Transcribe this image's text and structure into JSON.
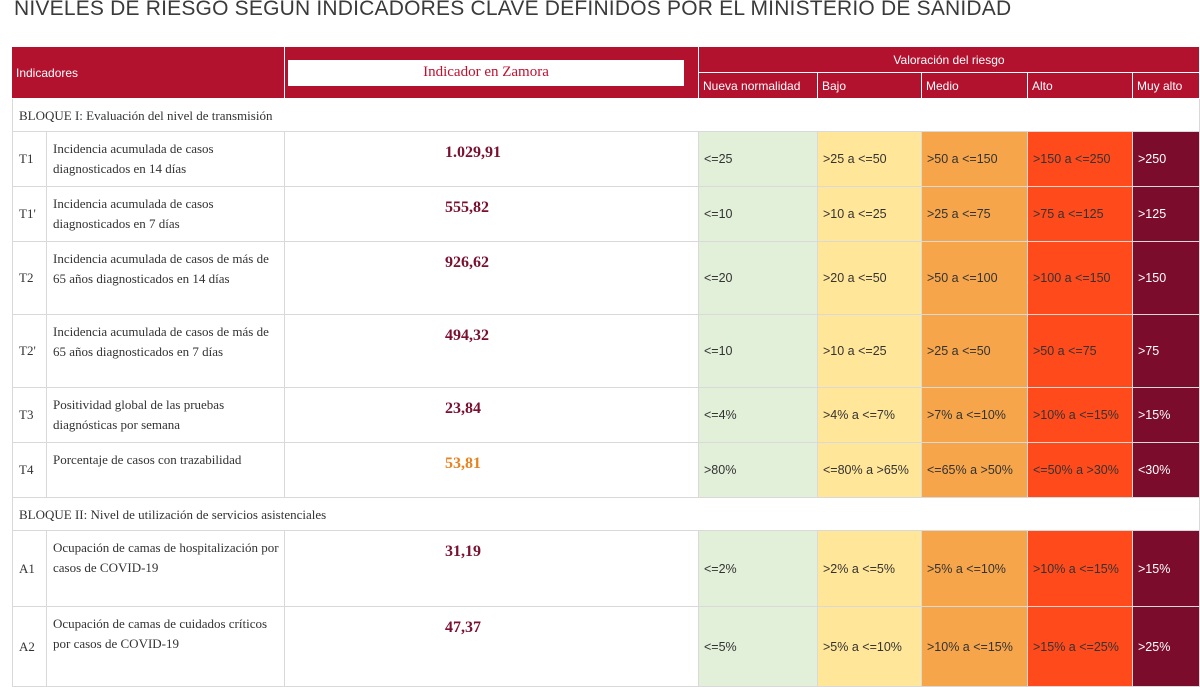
{
  "title": "NIVELES DE RIESGO SEGÚN INDICADORES CLAVE DEFINIDOS POR EL MINISTERIO DE SANIDAD",
  "header": {
    "indicadores": "Indicadores",
    "indicador_zamora": "Indicador en Zamora",
    "valoracion": "Valoración del riesgo",
    "levels": [
      {
        "name": "Nueva normalidad",
        "color": "#e2efd9"
      },
      {
        "name": "Bajo",
        "color": "#ffe699"
      },
      {
        "name": "Medio",
        "color": "#f6a54a"
      },
      {
        "name": "Alto",
        "color": "#ff4a1c"
      },
      {
        "name": "Muy alto",
        "color": "#7b0c2c"
      }
    ]
  },
  "blocks": [
    {
      "title": "BLOQUE I: Evaluación del nivel de transmisión",
      "rows": [
        {
          "code": "T1",
          "description": "Incidencia acumulada de casos diagnosticados en 14 días",
          "value": "1.029,91",
          "value_color": "#7a1030",
          "thresholds": [
            "<=25",
            ">25 a <=50",
            ">50 a <=150",
            ">150 a <=250",
            ">250"
          ]
        },
        {
          "code": "T1'",
          "description": "Incidencia acumulada de casos diagnosticados en 7 días",
          "value": "555,82",
          "value_color": "#7a1030",
          "thresholds": [
            "<=10",
            ">10 a <=25",
            ">25 a <=75",
            ">75 a <=125",
            ">125"
          ]
        },
        {
          "code": "T2",
          "description": "Incidencia acumulada de casos de más de 65 años diagnosticados en 14 días",
          "value": "926,62",
          "value_color": "#7a1030",
          "thresholds": [
            "<=20",
            ">20 a <=50",
            ">50 a <=100",
            ">100 a <=150",
            ">150"
          ]
        },
        {
          "code": "T2'",
          "description": "Incidencia acumulada de casos de más de 65 años diagnosticados en 7 días",
          "value": "494,32",
          "value_color": "#7a1030",
          "thresholds": [
            "<=10",
            ">10 a <=25",
            ">25 a <=50",
            ">50 a <=75",
            ">75"
          ]
        },
        {
          "code": "T3",
          "description": "Positividad global de las pruebas diagnósticas por semana",
          "value": "23,84",
          "value_color": "#7a1030",
          "thresholds": [
            "<=4%",
            ">4% a <=7%",
            ">7% a <=10%",
            ">10% a <=15%",
            ">15%"
          ]
        },
        {
          "code": "T4",
          "description": "Porcentaje de casos con trazabilidad",
          "value": "53,81",
          "value_color": "#e8821e",
          "thresholds": [
            ">80%",
            "<=80% a >65%",
            "<=65% a >50%",
            "<=50% a >30%",
            "<30%"
          ]
        }
      ]
    },
    {
      "title": "BLOQUE II: Nivel de utilización de servicios asistenciales",
      "rows": [
        {
          "code": "A1",
          "description": "Ocupación de camas de hospitalización por casos de COVID-19",
          "value": "31,19",
          "value_color": "#7a1030",
          "thresholds": [
            "<=2%",
            ">2% a <=5%",
            ">5% a <=10%",
            ">10% a <=15%",
            ">15%"
          ]
        },
        {
          "code": "A2",
          "description": "Ocupación de camas de cuidados críticos por casos de COVID-19",
          "value": "47,37",
          "value_color": "#7a1030",
          "thresholds": [
            "<=5%",
            ">5% a <=10%",
            ">10% a <=15%",
            ">15% a <=25%",
            ">25%"
          ]
        }
      ]
    }
  ]
}
